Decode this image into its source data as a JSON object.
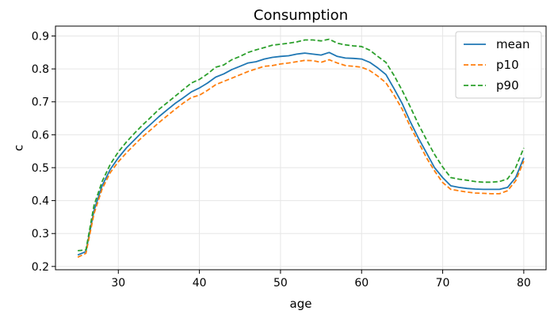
{
  "chart_data": {
    "type": "line",
    "title": "Consumption",
    "xlabel": "age",
    "ylabel": "c",
    "xlim": [
      22.25,
      82.75
    ],
    "ylim": [
      0.19,
      0.93
    ],
    "xticks": [
      30,
      40,
      50,
      60,
      70,
      80
    ],
    "yticks": [
      0.2,
      0.3,
      0.4,
      0.5,
      0.6,
      0.7,
      0.8,
      0.9
    ],
    "grid": true,
    "legend": "top-right",
    "x": [
      25,
      26,
      27,
      28,
      29,
      30,
      31,
      32,
      33,
      34,
      35,
      36,
      37,
      38,
      39,
      40,
      41,
      42,
      43,
      44,
      45,
      46,
      47,
      48,
      49,
      50,
      51,
      52,
      53,
      54,
      55,
      56,
      57,
      58,
      59,
      60,
      61,
      62,
      63,
      64,
      65,
      66,
      67,
      68,
      69,
      70,
      71,
      72,
      73,
      74,
      75,
      76,
      77,
      78,
      79,
      80
    ],
    "series": [
      {
        "name": "mean",
        "color": "#1f77b4",
        "style": "solid",
        "values": [
          0.235,
          0.245,
          0.37,
          0.445,
          0.495,
          0.53,
          0.56,
          0.585,
          0.61,
          0.632,
          0.655,
          0.675,
          0.695,
          0.712,
          0.73,
          0.742,
          0.757,
          0.775,
          0.785,
          0.798,
          0.808,
          0.818,
          0.822,
          0.83,
          0.835,
          0.838,
          0.84,
          0.845,
          0.848,
          0.845,
          0.842,
          0.85,
          0.838,
          0.833,
          0.832,
          0.83,
          0.82,
          0.803,
          0.783,
          0.74,
          0.695,
          0.64,
          0.59,
          0.545,
          0.5,
          0.47,
          0.445,
          0.44,
          0.437,
          0.435,
          0.434,
          0.434,
          0.434,
          0.44,
          0.47,
          0.53
        ]
      },
      {
        "name": "p10",
        "color": "#ff7f0e",
        "style": "dashed",
        "values": [
          0.228,
          0.24,
          0.36,
          0.435,
          0.485,
          0.518,
          0.545,
          0.57,
          0.594,
          0.615,
          0.637,
          0.657,
          0.677,
          0.696,
          0.713,
          0.72,
          0.735,
          0.752,
          0.762,
          0.772,
          0.782,
          0.792,
          0.8,
          0.808,
          0.81,
          0.815,
          0.818,
          0.822,
          0.826,
          0.825,
          0.82,
          0.828,
          0.818,
          0.81,
          0.808,
          0.805,
          0.795,
          0.778,
          0.758,
          0.72,
          0.678,
          0.625,
          0.578,
          0.53,
          0.49,
          0.455,
          0.434,
          0.43,
          0.426,
          0.423,
          0.422,
          0.421,
          0.421,
          0.43,
          0.46,
          0.52
        ]
      },
      {
        "name": "p90",
        "color": "#2ca02c",
        "style": "dashed",
        "values": [
          0.248,
          0.25,
          0.385,
          0.458,
          0.51,
          0.548,
          0.578,
          0.605,
          0.63,
          0.653,
          0.677,
          0.697,
          0.717,
          0.737,
          0.757,
          0.768,
          0.785,
          0.805,
          0.812,
          0.828,
          0.838,
          0.85,
          0.858,
          0.865,
          0.872,
          0.875,
          0.878,
          0.882,
          0.888,
          0.888,
          0.885,
          0.89,
          0.878,
          0.873,
          0.87,
          0.868,
          0.857,
          0.838,
          0.82,
          0.78,
          0.735,
          0.685,
          0.632,
          0.585,
          0.54,
          0.502,
          0.47,
          0.465,
          0.462,
          0.458,
          0.456,
          0.456,
          0.458,
          0.466,
          0.5,
          0.56
        ]
      }
    ]
  }
}
